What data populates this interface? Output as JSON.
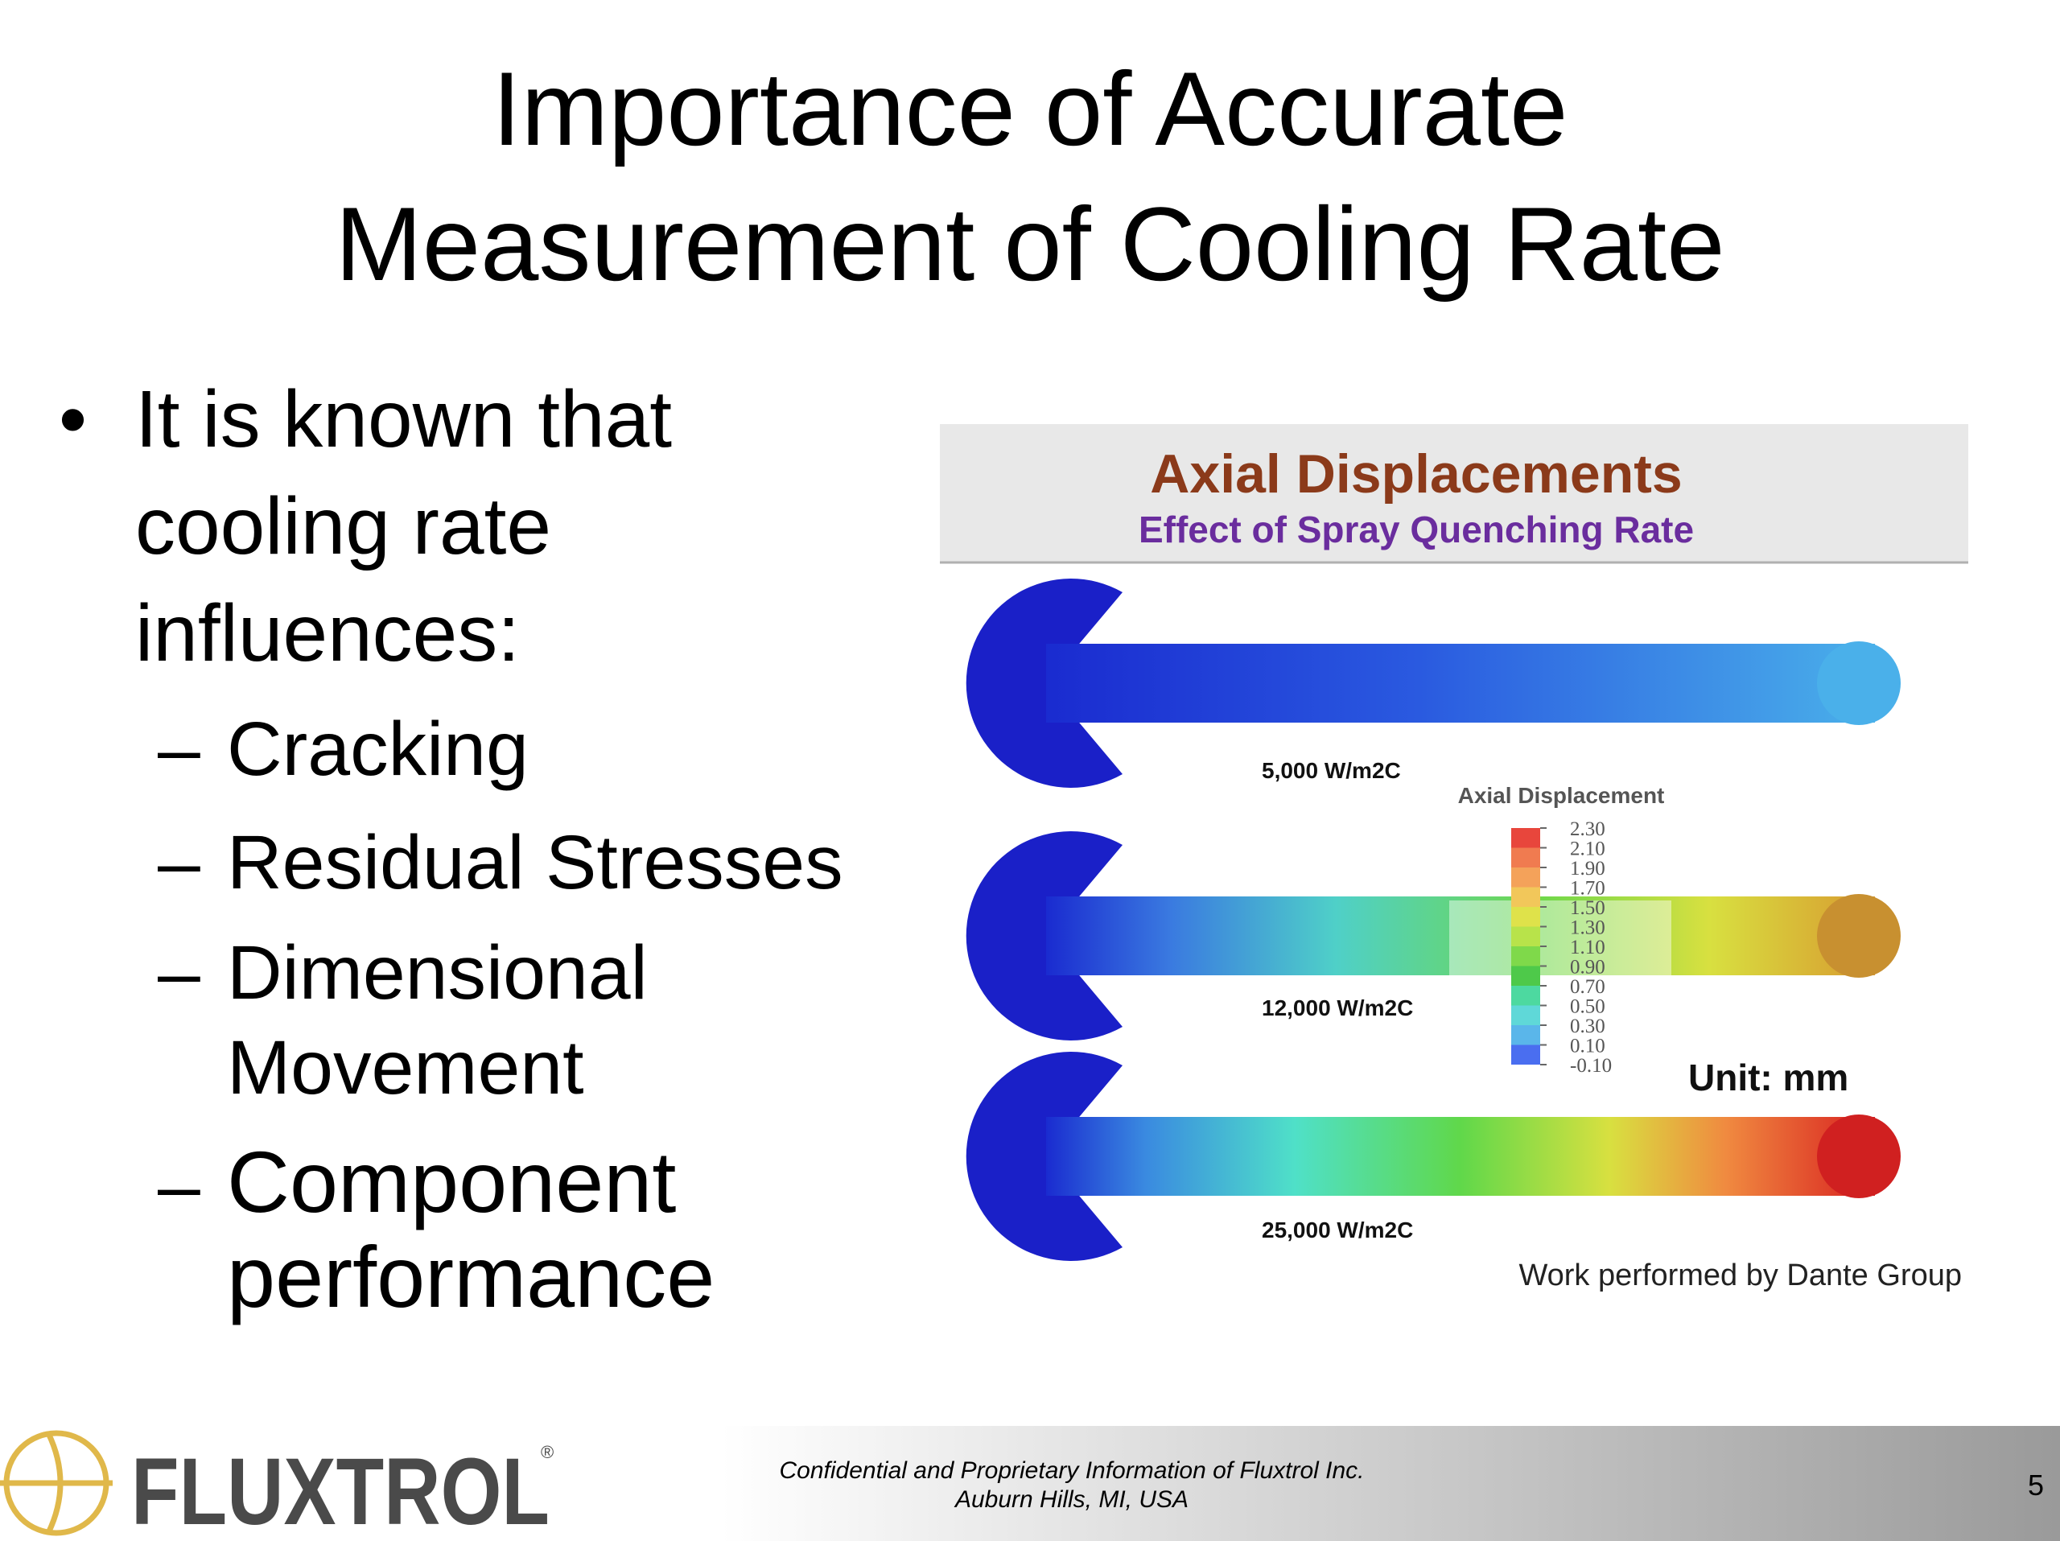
{
  "title": [
    "Importance of Accurate",
    "Measurement of Cooling Rate"
  ],
  "bullet": {
    "lines": [
      "It is known that",
      "cooling rate",
      "influences:"
    ],
    "items": [
      {
        "lines": [
          "Cracking"
        ]
      },
      {
        "lines": [
          "Residual Stresses"
        ]
      },
      {
        "lines": [
          "Dimensional",
          "Movement"
        ]
      },
      {
        "lines": [
          "Component",
          "performance"
        ]
      }
    ]
  },
  "figure": {
    "title": "Axial Displacements",
    "subtitle": "Effect of Spray Quenching Rate",
    "rods": [
      "5,000 W/m2C",
      "12,000 W/m2C",
      "25,000 W/m2C"
    ],
    "legend": {
      "title": "Axial Displacement",
      "labels": [
        "2.30",
        "2.10",
        "1.90",
        "1.70",
        "1.50",
        "1.30",
        "1.10",
        "0.90",
        "0.70",
        "0.50",
        "0.30",
        "0.10",
        "-0.10"
      ]
    },
    "unit": "Unit: mm",
    "credit": "Work performed by Dante Group"
  },
  "footer": {
    "logo": "FLUXTROL",
    "logo_mark": "®",
    "lines": [
      "Confidential and Proprietary Information of Fluxtrol Inc.",
      "Auburn Hills, MI, USA"
    ],
    "page": "5"
  }
}
